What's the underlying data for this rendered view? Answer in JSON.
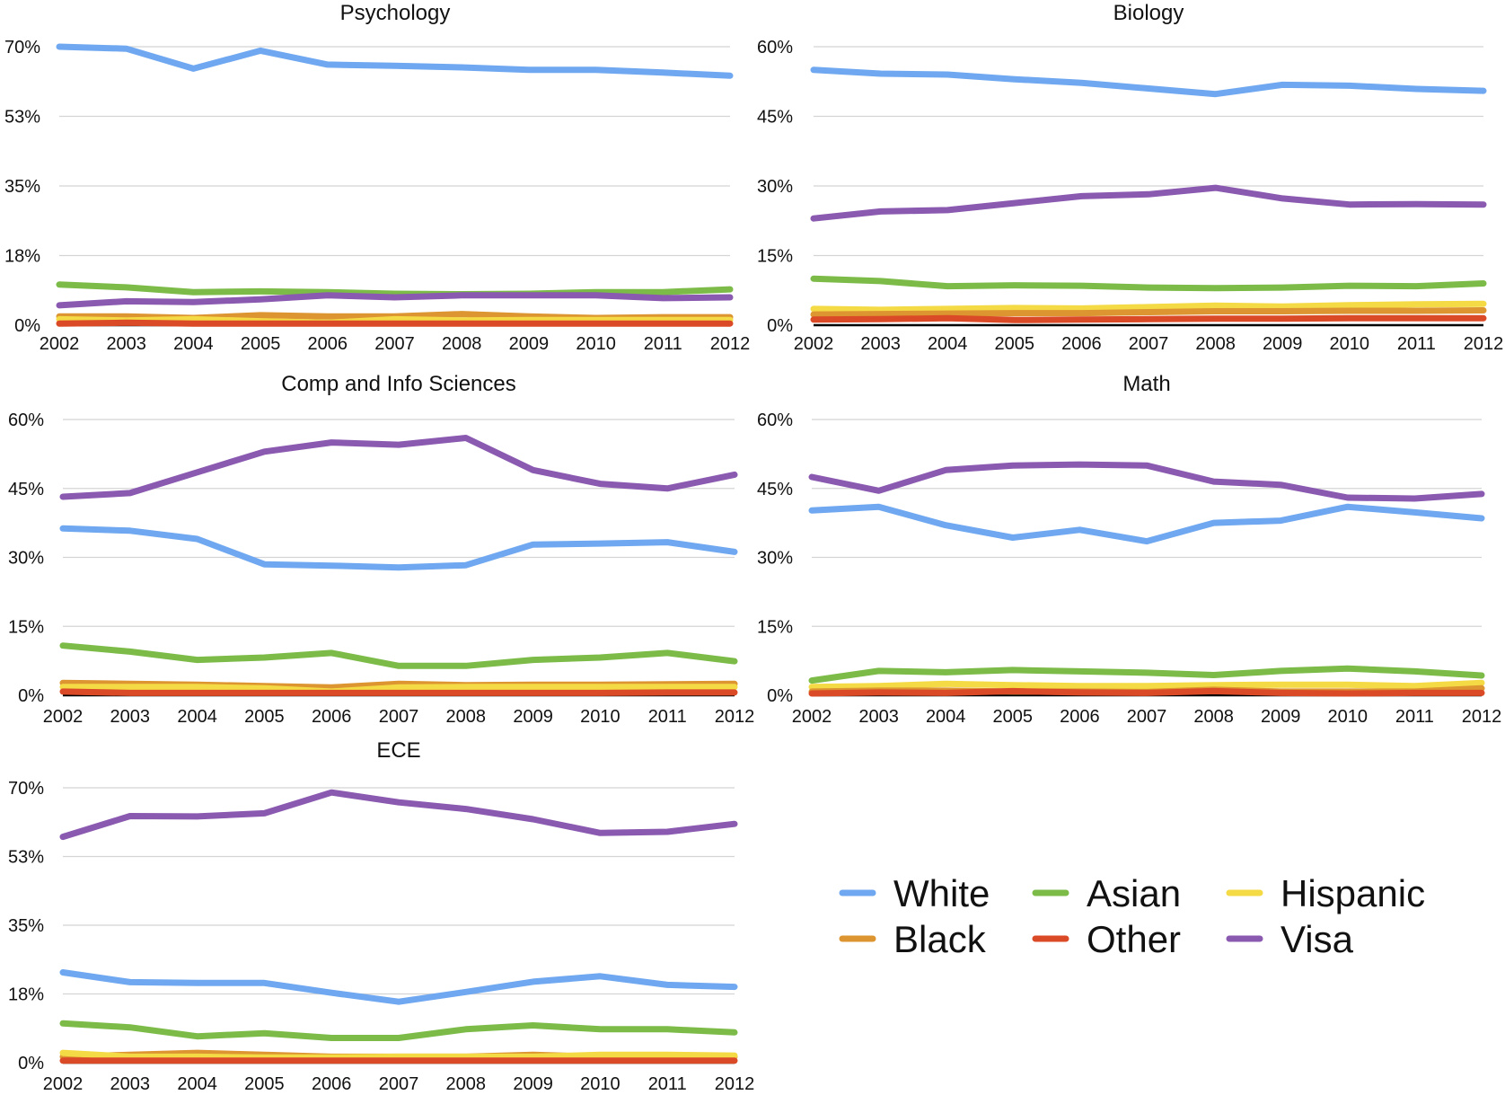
{
  "chart_data": [
    {
      "type": "line",
      "title": "Psychology",
      "x": [
        "2002",
        "2003",
        "2004",
        "2005",
        "2006",
        "2007",
        "2008",
        "2009",
        "2010",
        "2011",
        "2012"
      ],
      "ylim": [
        0,
        70
      ],
      "yticks": [
        "0%",
        "18%",
        "35%",
        "53%",
        "70%"
      ],
      "series": [
        {
          "name": "White",
          "color": "#6fa8f0",
          "values": [
            70,
            69.5,
            64.5,
            69,
            65.5,
            65.2,
            64.8,
            64.2,
            64.2,
            63.5,
            62.7
          ]
        },
        {
          "name": "Asian",
          "color": "#7cbb48",
          "values": [
            10.2,
            9.5,
            8.3,
            8.5,
            8.3,
            7.9,
            7.8,
            7.9,
            8.3,
            8.3,
            9
          ]
        },
        {
          "name": "Visa",
          "color": "#8a59b0",
          "values": [
            5,
            6,
            5.8,
            6.5,
            7.5,
            7,
            7.5,
            7.5,
            7.5,
            6.8,
            7
          ]
        },
        {
          "name": "Black",
          "color": "#dc9530",
          "values": [
            2.2,
            2.2,
            1.8,
            2.5,
            2.2,
            2.2,
            2.8,
            2.2,
            1.8,
            2,
            2
          ]
        },
        {
          "name": "Hispanic",
          "color": "#f4da45",
          "values": [
            1.5,
            1.2,
            1.5,
            1.0,
            0.6,
            1.5,
            1.2,
            1.3,
            1.3,
            1.3,
            1.3
          ]
        },
        {
          "name": "Other",
          "color": "#db4a26",
          "values": [
            0.4,
            0.6,
            0.4,
            0.4,
            0.4,
            0.4,
            0.4,
            0.4,
            0.4,
            0.4,
            0.4
          ]
        }
      ]
    },
    {
      "type": "line",
      "title": "Biology",
      "x": [
        "2002",
        "2003",
        "2004",
        "2005",
        "2006",
        "2007",
        "2008",
        "2009",
        "2010",
        "2011",
        "2012"
      ],
      "ylim": [
        0,
        60
      ],
      "yticks": [
        "0%",
        "15%",
        "30%",
        "45%",
        "60%"
      ],
      "series": [
        {
          "name": "White",
          "color": "#6fa8f0",
          "values": [
            55,
            54.2,
            54,
            53,
            52.2,
            51,
            49.8,
            51.8,
            51.6,
            50.9,
            50.5
          ]
        },
        {
          "name": "Visa",
          "color": "#8a59b0",
          "values": [
            23,
            24.5,
            24.8,
            26.3,
            27.8,
            28.2,
            29.6,
            27.3,
            26,
            26.1,
            26
          ]
        },
        {
          "name": "Asian",
          "color": "#7cbb48",
          "values": [
            10,
            9.5,
            8.4,
            8.6,
            8.5,
            8.1,
            8.0,
            8.1,
            8.5,
            8.4,
            9
          ]
        },
        {
          "name": "Hispanic",
          "color": "#f4da45",
          "values": [
            3.5,
            3.3,
            3.5,
            3.7,
            3.6,
            3.9,
            4.2,
            4.0,
            4.3,
            4.5,
            4.6
          ]
        },
        {
          "name": "Black",
          "color": "#dc9530",
          "values": [
            2.3,
            2.4,
            2.5,
            2.6,
            2.6,
            2.8,
            3.0,
            3.0,
            3.1,
            3.1,
            3.2
          ]
        },
        {
          "name": "Other",
          "color": "#db4a26",
          "values": [
            1.2,
            1.3,
            1.5,
            1.1,
            1.2,
            1.3,
            1.4,
            1.4,
            1.5,
            1.5,
            1.5
          ]
        }
      ]
    },
    {
      "type": "line",
      "title": "Comp and Info Sciences",
      "x": [
        "2002",
        "2003",
        "2004",
        "2005",
        "2006",
        "2007",
        "2008",
        "2009",
        "2010",
        "2011",
        "2012"
      ],
      "ylim": [
        0,
        60
      ],
      "yticks": [
        "0%",
        "15%",
        "30%",
        "45%",
        "60%"
      ],
      "series": [
        {
          "name": "Visa",
          "color": "#8a59b0",
          "values": [
            43.2,
            44,
            48.5,
            53,
            55,
            54.5,
            56,
            49,
            46,
            45,
            48
          ]
        },
        {
          "name": "White",
          "color": "#6fa8f0",
          "values": [
            36.3,
            35.8,
            34,
            28.5,
            28.2,
            27.8,
            28.3,
            32.8,
            33,
            33.3,
            31.2
          ]
        },
        {
          "name": "Asian",
          "color": "#7cbb48",
          "values": [
            10.8,
            9.5,
            7.7,
            8.2,
            9.2,
            6.4,
            6.4,
            7.7,
            8.2,
            9.2,
            7.4
          ]
        },
        {
          "name": "Black",
          "color": "#dc9530",
          "values": [
            2.7,
            2.5,
            2.3,
            2.0,
            1.7,
            2.5,
            2.2,
            2.3,
            2.3,
            2.4,
            2.5
          ]
        },
        {
          "name": "Hispanic",
          "color": "#f4da45",
          "values": [
            1.8,
            1.8,
            1.8,
            1.5,
            0.8,
            1.7,
            1.8,
            1.8,
            1.8,
            1.8,
            1.8
          ]
        },
        {
          "name": "Other",
          "color": "#db4a26",
          "values": [
            0.8,
            0.5,
            0.5,
            0.5,
            0.5,
            0.5,
            0.5,
            0.5,
            0.5,
            0.6,
            0.6
          ]
        }
      ]
    },
    {
      "type": "line",
      "title": "Math",
      "x": [
        "2002",
        "2003",
        "2004",
        "2005",
        "2006",
        "2007",
        "2008",
        "2009",
        "2010",
        "2011",
        "2012"
      ],
      "ylim": [
        0,
        60
      ],
      "yticks": [
        "0%",
        "15%",
        "30%",
        "45%",
        "60%"
      ],
      "series": [
        {
          "name": "Visa",
          "color": "#8a59b0",
          "values": [
            47.5,
            44.5,
            49,
            50,
            50.2,
            50,
            46.5,
            45.8,
            43,
            42.8,
            43.8
          ]
        },
        {
          "name": "White",
          "color": "#6fa8f0",
          "values": [
            40.2,
            41,
            37,
            34.3,
            36,
            33.5,
            37.5,
            38,
            41,
            39.8,
            38.5
          ]
        },
        {
          "name": "Asian",
          "color": "#7cbb48",
          "values": [
            3.2,
            5.3,
            5.0,
            5.5,
            5.2,
            4.9,
            4.4,
            5.3,
            5.8,
            5.2,
            4.3
          ]
        },
        {
          "name": "Hispanic",
          "color": "#f4da45",
          "values": [
            1.8,
            2.0,
            2.5,
            2.2,
            2.0,
            2.0,
            2.2,
            2.3,
            2.3,
            2.0,
            2.7
          ]
        },
        {
          "name": "Black",
          "color": "#dc9530",
          "values": [
            0.8,
            1.0,
            1.0,
            0.8,
            0.8,
            0.7,
            1.2,
            0.8,
            0.8,
            0.8,
            1.5
          ]
        },
        {
          "name": "Other",
          "color": "#db4a26",
          "values": [
            0.4,
            0.6,
            0.5,
            0.9,
            0.6,
            0.5,
            0.9,
            0.5,
            0.4,
            0.5,
            0.5
          ]
        }
      ]
    },
    {
      "type": "line",
      "title": "ECE",
      "x": [
        "2002",
        "2003",
        "2004",
        "2005",
        "2006",
        "2007",
        "2008",
        "2009",
        "2010",
        "2011",
        "2012"
      ],
      "ylim": [
        0,
        70
      ],
      "yticks": [
        "0%",
        "18%",
        "35%",
        "53%",
        "70%"
      ],
      "series": [
        {
          "name": "Visa",
          "color": "#8a59b0",
          "values": [
            57.5,
            62.8,
            62.7,
            63.5,
            68.8,
            66.3,
            64.6,
            62,
            58.5,
            58.8,
            60.8
          ]
        },
        {
          "name": "White",
          "color": "#6fa8f0",
          "values": [
            23,
            20.5,
            20.3,
            20.3,
            17.8,
            15.5,
            18,
            20.6,
            22,
            19.8,
            19.3
          ]
        },
        {
          "name": "Asian",
          "color": "#7cbb48",
          "values": [
            10,
            9,
            6.7,
            7.5,
            6.3,
            6.3,
            8.5,
            9.5,
            8.5,
            8.5,
            7.7
          ]
        },
        {
          "name": "Black",
          "color": "#dc9530",
          "values": [
            1.5,
            2.0,
            2.5,
            2.0,
            1.5,
            1.5,
            1.5,
            2.0,
            1.5,
            1.5,
            1.5
          ]
        },
        {
          "name": "Hispanic",
          "color": "#f4da45",
          "values": [
            2.5,
            1.5,
            1.5,
            1.3,
            1.3,
            1.5,
            1.5,
            1.5,
            2.0,
            2.0,
            1.8
          ]
        },
        {
          "name": "Other",
          "color": "#db4a26",
          "values": [
            0.5,
            0.5,
            0.5,
            0.5,
            0.5,
            0.5,
            0.5,
            0.5,
            0.5,
            0.5,
            0.5
          ]
        }
      ]
    }
  ],
  "legend": {
    "items": [
      {
        "label": "White",
        "color": "#6fa8f0"
      },
      {
        "label": "Asian",
        "color": "#7cbb48"
      },
      {
        "label": "Hispanic",
        "color": "#f4da45"
      },
      {
        "label": "Black",
        "color": "#dc9530"
      },
      {
        "label": "Other",
        "color": "#db4a26"
      },
      {
        "label": "Visa",
        "color": "#8a59b0"
      }
    ]
  }
}
